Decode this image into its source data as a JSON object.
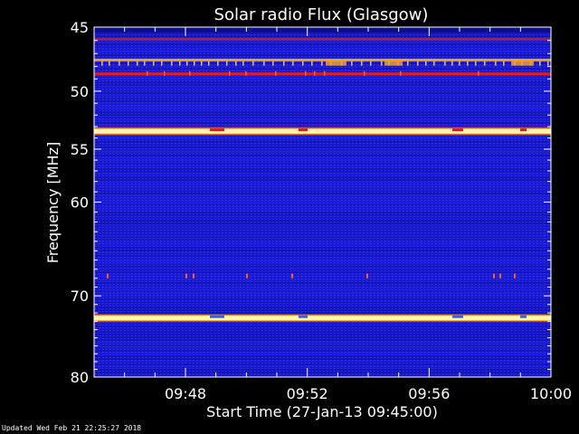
{
  "footer": {
    "updated": "Updated Wed Feb 21 22:25:27 2018"
  },
  "chart_data": {
    "type": "heatmap",
    "title": "Solar radio Flux (Glasgow)",
    "xlabel": "Start Time (27-Jan-13 09:45:00)",
    "ylabel": "Frequency [MHz]",
    "x_range_min": [
      0,
      15
    ],
    "x_ticks": [
      {
        "value": 3,
        "label": "09:48"
      },
      {
        "value": 7,
        "label": "09:52"
      },
      {
        "value": 11,
        "label": "09:56"
      },
      {
        "value": 15,
        "label": "10:00"
      }
    ],
    "y_scale": "log",
    "y_range_mhz": [
      45,
      80
    ],
    "y_ticks": [
      {
        "value": 45,
        "label": "45"
      },
      {
        "value": 50,
        "label": "50"
      },
      {
        "value": 55,
        "label": "55"
      },
      {
        "value": 60,
        "label": "60"
      },
      {
        "value": 70,
        "label": "70"
      },
      {
        "value": 80,
        "label": "80"
      }
    ],
    "background_color": "#1a1ad0",
    "emission_bands": [
      {
        "freq_mhz": 45.9,
        "intensity": "medium",
        "color": "#c0202a"
      },
      {
        "freq_mhz": 47.5,
        "intensity": "high",
        "color": "#f0a020"
      },
      {
        "freq_mhz": 48.6,
        "intensity": "high",
        "color": "#e02018"
      },
      {
        "freq_mhz": 53.4,
        "intensity": "very high",
        "color": "#fff8b0"
      },
      {
        "freq_mhz": 67.8,
        "intensity": "low",
        "color": "#c02020"
      },
      {
        "freq_mhz": 72.6,
        "intensity": "very high",
        "color": "#fff8b0"
      }
    ]
  }
}
